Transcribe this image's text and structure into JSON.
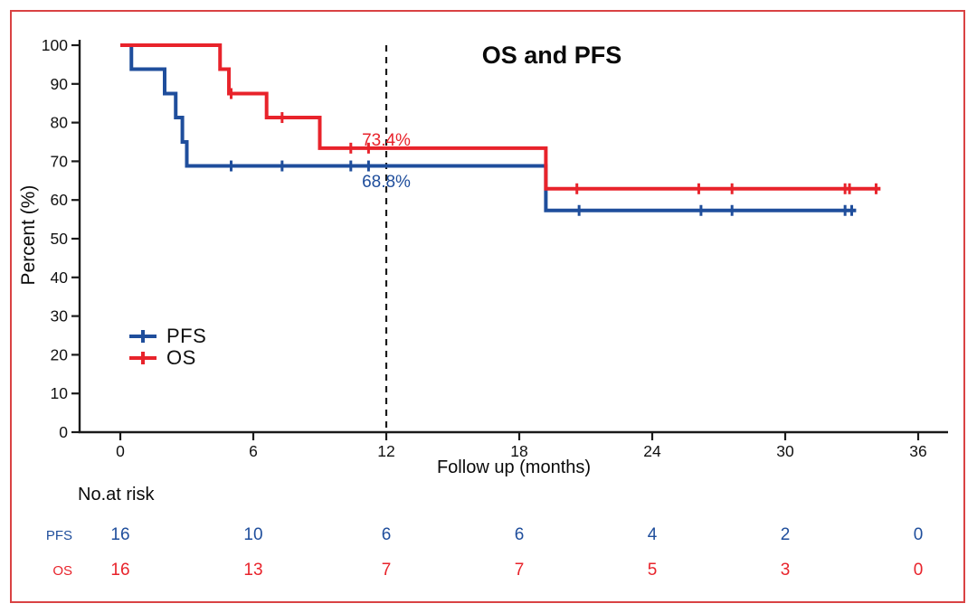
{
  "figure": {
    "background": "#ffffff",
    "border_color": "#d94243"
  },
  "chart_data": {
    "type": "line",
    "subtype": "kaplan-meier-step",
    "title": "OS and PFS",
    "xlabel": "Follow up (months)",
    "ylabel": "Percent (%)",
    "xlim": [
      0,
      36
    ],
    "ylim": [
      0,
      100
    ],
    "xticks": [
      0,
      6,
      12,
      18,
      24,
      30,
      36
    ],
    "yticks": [
      0,
      10,
      20,
      30,
      40,
      50,
      60,
      70,
      80,
      90,
      100
    ],
    "grid": false,
    "legend_position": "inside-left-middle",
    "reference_line": {
      "axis": "x",
      "value": 12,
      "style": "dashed",
      "color": "#1a1a1a"
    },
    "series": [
      {
        "name": "PFS",
        "color": "#1f4e9c",
        "steps": [
          [
            0,
            100
          ],
          [
            0.5,
            100
          ],
          [
            0.5,
            93.8
          ],
          [
            2,
            93.8
          ],
          [
            2,
            87.5
          ],
          [
            2.5,
            87.5
          ],
          [
            2.5,
            81.3
          ],
          [
            2.8,
            81.3
          ],
          [
            2.8,
            75
          ],
          [
            3,
            75
          ],
          [
            3,
            68.8
          ],
          [
            19.2,
            68.8
          ],
          [
            19.2,
            57.3
          ],
          [
            33.2,
            57.3
          ]
        ],
        "censor_marks": [
          [
            5,
            68.8
          ],
          [
            7.3,
            68.8
          ],
          [
            10.4,
            68.8
          ],
          [
            11.2,
            68.8
          ],
          [
            20.7,
            57.3
          ],
          [
            26.2,
            57.3
          ],
          [
            27.6,
            57.3
          ],
          [
            32.7,
            57.3
          ],
          [
            33,
            57.3
          ]
        ]
      },
      {
        "name": "OS",
        "color": "#e8232b",
        "steps": [
          [
            0,
            100
          ],
          [
            4.5,
            100
          ],
          [
            4.5,
            93.8
          ],
          [
            4.9,
            93.8
          ],
          [
            4.9,
            87.5
          ],
          [
            6.6,
            87.5
          ],
          [
            6.6,
            81.3
          ],
          [
            9,
            81.3
          ],
          [
            9,
            73.4
          ],
          [
            19.2,
            73.4
          ],
          [
            19.2,
            62.9
          ],
          [
            34.3,
            62.9
          ]
        ],
        "censor_marks": [
          [
            5,
            87.5
          ],
          [
            7.3,
            81.3
          ],
          [
            10.4,
            73.4
          ],
          [
            11.2,
            73.4
          ],
          [
            20.6,
            62.9
          ],
          [
            26.1,
            62.9
          ],
          [
            27.6,
            62.9
          ],
          [
            32.7,
            62.9
          ],
          [
            32.9,
            62.9
          ],
          [
            34.1,
            62.9
          ]
        ]
      }
    ],
    "annotations": [
      {
        "text": "73.4%",
        "x": 12,
        "y": 75.3,
        "color": "#e8232b"
      },
      {
        "text": "68.8%",
        "x": 12,
        "y": 64.6,
        "color": "#1f4e9c"
      }
    ],
    "legend": [
      {
        "label": "PFS",
        "color": "#1f4e9c"
      },
      {
        "label": "OS",
        "color": "#e8232b"
      }
    ],
    "risk_table": {
      "title": "No.at risk",
      "time_points": [
        0,
        6,
        12,
        18,
        24,
        30,
        36
      ],
      "rows": [
        {
          "name": "PFS",
          "color": "#1f4e9c",
          "values": [
            16,
            10,
            6,
            6,
            4,
            2,
            0
          ]
        },
        {
          "name": "OS",
          "color": "#e8232b",
          "values": [
            16,
            13,
            7,
            7,
            5,
            3,
            0
          ]
        }
      ]
    }
  }
}
